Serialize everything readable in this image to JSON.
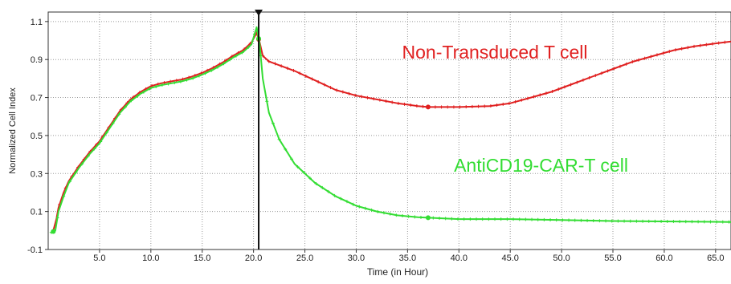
{
  "chart_data": {
    "type": "line",
    "xlabel": "Time (in Hour)",
    "ylabel": "Normalized Cell Index",
    "xlim": [
      0,
      66.5
    ],
    "ylim": [
      -0.1,
      1.15
    ],
    "xticks": [
      "5.0",
      "10.0",
      "15.0",
      "20.0",
      "25.0",
      "30.0",
      "35.0",
      "40.0",
      "45.0",
      "50.0",
      "55.0",
      "60.0",
      "65.0"
    ],
    "yticks": [
      "-0.1",
      "0.1",
      "0.3",
      "0.5",
      "0.7",
      "0.9",
      "1.1"
    ],
    "grid": true,
    "vertical_marker_x": 20.5,
    "series": [
      {
        "name": "Non-Transduced T cell",
        "color": "#e02020",
        "points": [
          [
            0.5,
            0.0
          ],
          [
            0.8,
            0.06
          ],
          [
            1.0,
            0.12
          ],
          [
            1.5,
            0.2
          ],
          [
            2.0,
            0.26
          ],
          [
            3.0,
            0.34
          ],
          [
            4.0,
            0.41
          ],
          [
            5.0,
            0.47
          ],
          [
            6.0,
            0.55
          ],
          [
            7.0,
            0.63
          ],
          [
            8.0,
            0.69
          ],
          [
            9.0,
            0.73
          ],
          [
            10.0,
            0.76
          ],
          [
            11.0,
            0.775
          ],
          [
            12.0,
            0.785
          ],
          [
            13.0,
            0.795
          ],
          [
            14.0,
            0.81
          ],
          [
            15.0,
            0.83
          ],
          [
            16.0,
            0.855
          ],
          [
            17.0,
            0.885
          ],
          [
            18.0,
            0.92
          ],
          [
            19.0,
            0.95
          ],
          [
            19.8,
            0.99
          ],
          [
            20.3,
            1.04
          ],
          [
            20.6,
            0.99
          ],
          [
            20.9,
            0.92
          ],
          [
            21.5,
            0.89
          ],
          [
            22.5,
            0.87
          ],
          [
            24.0,
            0.84
          ],
          [
            26.0,
            0.79
          ],
          [
            28.0,
            0.74
          ],
          [
            30.0,
            0.71
          ],
          [
            32.0,
            0.69
          ],
          [
            34.0,
            0.67
          ],
          [
            36.0,
            0.655
          ],
          [
            37.0,
            0.65
          ],
          [
            40.0,
            0.65
          ],
          [
            43.0,
            0.655
          ],
          [
            45.0,
            0.67
          ],
          [
            47.0,
            0.7
          ],
          [
            49.0,
            0.73
          ],
          [
            51.0,
            0.77
          ],
          [
            53.0,
            0.81
          ],
          [
            55.0,
            0.85
          ],
          [
            57.0,
            0.89
          ],
          [
            59.0,
            0.92
          ],
          [
            61.0,
            0.95
          ],
          [
            63.0,
            0.97
          ],
          [
            65.0,
            0.985
          ],
          [
            66.5,
            0.995
          ]
        ],
        "markers_x": [
          20.5,
          37.0
        ]
      },
      {
        "name": "AntiCD19-CAR-T cell",
        "color": "#33dd33",
        "points": [
          [
            0.3,
            -0.01
          ],
          [
            0.7,
            0.0
          ],
          [
            1.0,
            0.1
          ],
          [
            1.5,
            0.18
          ],
          [
            2.0,
            0.25
          ],
          [
            3.0,
            0.33
          ],
          [
            4.0,
            0.4
          ],
          [
            5.0,
            0.46
          ],
          [
            6.0,
            0.54
          ],
          [
            7.0,
            0.62
          ],
          [
            8.0,
            0.68
          ],
          [
            9.0,
            0.72
          ],
          [
            10.0,
            0.75
          ],
          [
            11.0,
            0.765
          ],
          [
            12.0,
            0.775
          ],
          [
            13.0,
            0.785
          ],
          [
            14.0,
            0.8
          ],
          [
            15.0,
            0.82
          ],
          [
            16.0,
            0.845
          ],
          [
            17.0,
            0.875
          ],
          [
            18.0,
            0.91
          ],
          [
            19.0,
            0.94
          ],
          [
            19.8,
            0.98
          ],
          [
            20.3,
            1.07
          ],
          [
            20.6,
            0.98
          ],
          [
            20.9,
            0.8
          ],
          [
            21.5,
            0.62
          ],
          [
            22.5,
            0.48
          ],
          [
            24.0,
            0.35
          ],
          [
            26.0,
            0.25
          ],
          [
            28.0,
            0.18
          ],
          [
            30.0,
            0.13
          ],
          [
            32.0,
            0.1
          ],
          [
            34.0,
            0.08
          ],
          [
            36.0,
            0.07
          ],
          [
            40.0,
            0.06
          ],
          [
            45.0,
            0.06
          ],
          [
            50.0,
            0.055
          ],
          [
            55.0,
            0.05
          ],
          [
            60.0,
            0.048
          ],
          [
            66.5,
            0.045
          ]
        ],
        "markers_x": [
          0.5,
          20.5,
          37.0
        ]
      }
    ],
    "annotations": [
      {
        "text": "Non-Transduced T cell",
        "color": "#e02020",
        "x": 43.5,
        "y": 0.905
      },
      {
        "text": "AntiCD19-CAR-T cell",
        "color": "#33dd33",
        "x": 48.0,
        "y": 0.31
      }
    ]
  }
}
